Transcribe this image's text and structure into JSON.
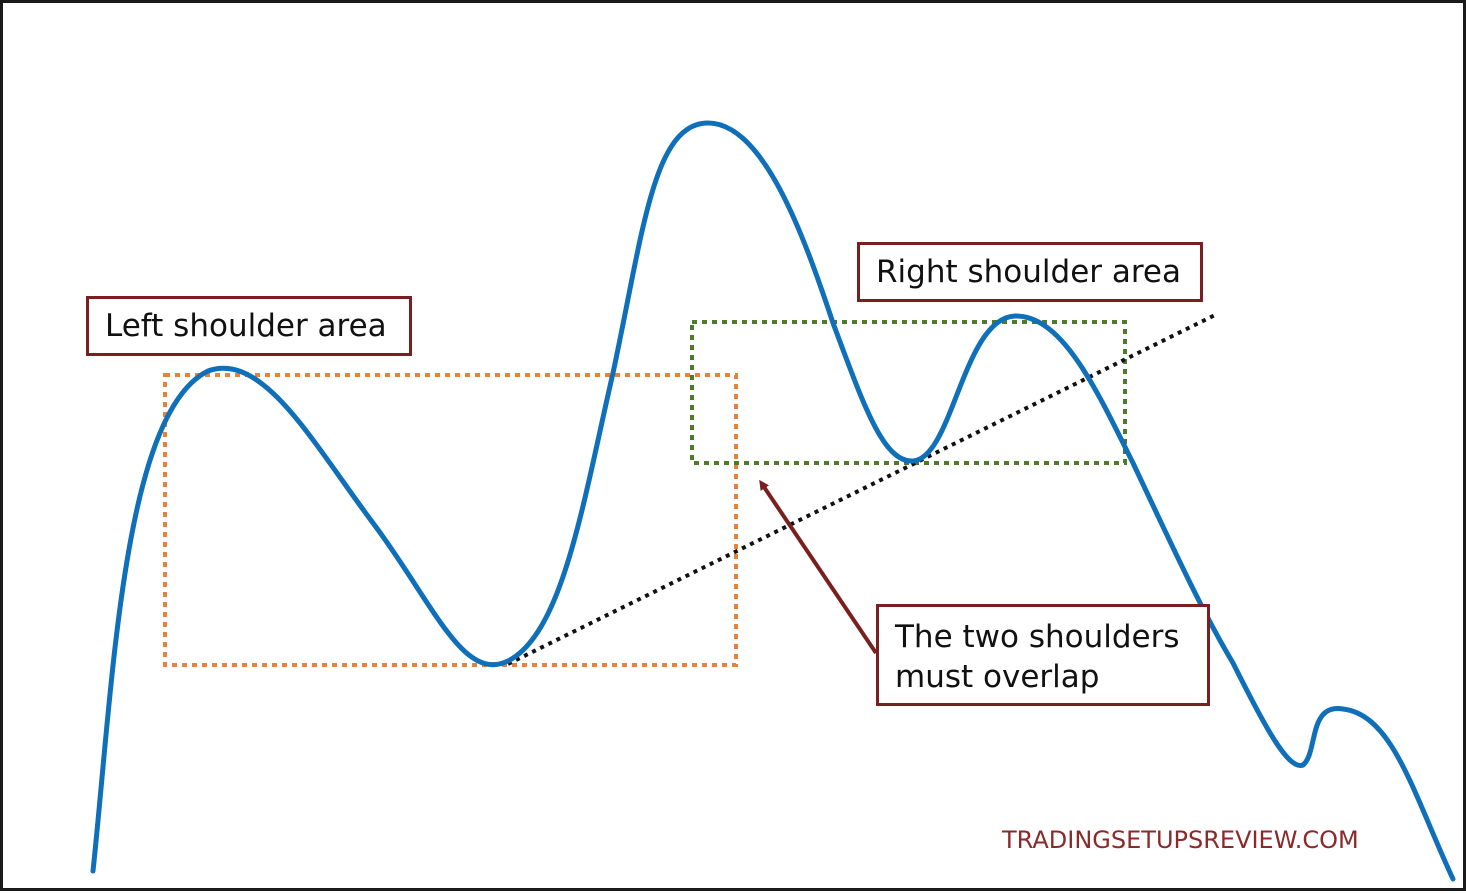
{
  "labels": {
    "left_shoulder": "Left shoulder area",
    "right_shoulder": "Right shoulder area",
    "overlap_line1": "The two shoulders",
    "overlap_line2": "must overlap"
  },
  "watermark": "TRADINGSETUPSREVIEW.COM",
  "colors": {
    "price_line": "#0f6fb8",
    "left_zone": "#e8823a",
    "right_zone": "#4e7a2a",
    "neckline": "#111111",
    "label_border": "#7a1f1f",
    "arrow": "#7a1f1f",
    "watermark": "#8b2a2a"
  }
}
